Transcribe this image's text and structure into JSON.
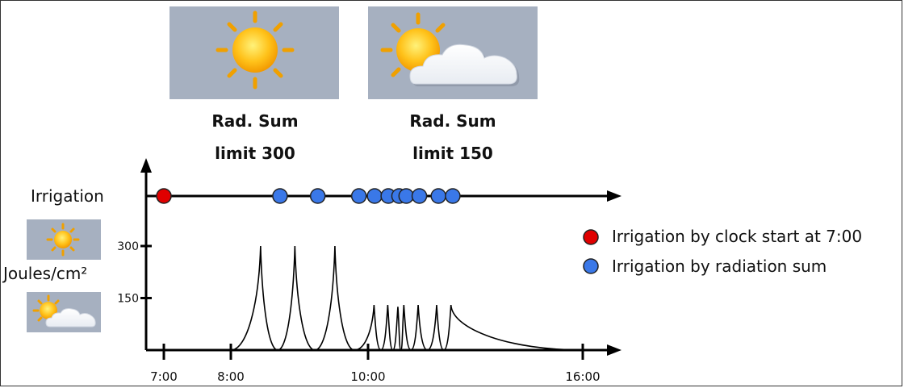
{
  "weather_cards": [
    {
      "condition": "sunny",
      "label_line1": "Rad. Sum",
      "label_line2": "limit 300"
    },
    {
      "condition": "partly-cloudy",
      "label_line1": "Rad. Sum",
      "label_line2": "limit 150"
    }
  ],
  "labels": {
    "irrigation": "Irrigation",
    "joules": "Joules/cm²"
  },
  "y_ticks": [
    {
      "value": 300,
      "label": "300"
    },
    {
      "value": 150,
      "label": "150"
    }
  ],
  "x_ticks": [
    {
      "time": "7:00",
      "label": "7:00"
    },
    {
      "time": "8:00",
      "label": "8:00"
    },
    {
      "time": "10:00",
      "label": "10:00"
    },
    {
      "time": "16:00",
      "label": "16:00"
    }
  ],
  "irrigation_events": [
    {
      "time": "7:00",
      "type": "clock"
    },
    {
      "time": "8:43",
      "type": "radiation"
    },
    {
      "time": "9:16",
      "type": "radiation"
    },
    {
      "time": "9:52",
      "type": "radiation"
    },
    {
      "time": "10:11",
      "type": "radiation"
    },
    {
      "time": "10:34",
      "type": "radiation"
    },
    {
      "time": "10:52",
      "type": "radiation"
    },
    {
      "time": "11:04",
      "type": "radiation"
    },
    {
      "time": "11:26",
      "type": "radiation"
    },
    {
      "time": "11:58",
      "type": "radiation"
    },
    {
      "time": "12:22",
      "type": "radiation"
    }
  ],
  "radiation_peaks": [
    {
      "time": "8:26",
      "value": 300
    },
    {
      "time": "8:56",
      "value": 300
    },
    {
      "time": "9:31",
      "value": 300
    },
    {
      "time": "10:10",
      "value": 130
    },
    {
      "time": "10:33",
      "value": 130
    },
    {
      "time": "10:50",
      "value": 125
    },
    {
      "time": "11:00",
      "value": 130
    },
    {
      "time": "11:24",
      "value": 130
    },
    {
      "time": "11:55",
      "value": 130
    },
    {
      "time": "12:19",
      "value": 130
    }
  ],
  "legend": [
    {
      "type": "clock",
      "color": "#e00000",
      "label": "Irrigation by clock start at 7:00"
    },
    {
      "type": "radiation",
      "color": "#3a78e8",
      "label": "Irrigation by radiation sum"
    }
  ],
  "colors": {
    "card_bg": "#a6b0c0",
    "sun": "#f5a800",
    "sun_center": "#fff060",
    "ray": "#f0a000",
    "cloud": "#ffffff",
    "clock_dot": "#e00000",
    "radiation_dot": "#3a78e8"
  }
}
